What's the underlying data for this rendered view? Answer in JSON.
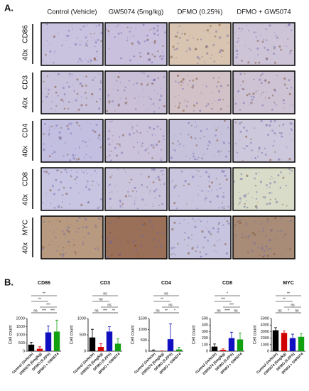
{
  "panel_a": {
    "label": "A.",
    "columns": [
      "Control (Vehicle)",
      "GW5074 (5mg/kg)",
      "DFMO (0.25%)",
      "DFMO + GW5074"
    ],
    "rows": [
      {
        "marker": "CD86",
        "magnification": "40x"
      },
      {
        "marker": "CD3",
        "magnification": "40x"
      },
      {
        "marker": "CD4",
        "magnification": "40x"
      },
      {
        "marker": "CD8",
        "magnification": "40x"
      },
      {
        "marker": "MYC",
        "magnification": "40x"
      }
    ]
  },
  "panel_b": {
    "label": "B."
  },
  "chart_data": [
    {
      "type": "bar",
      "title": "CD86",
      "ylabel": "Cell count",
      "categories": [
        "Control (Vehicle)",
        "GW5074 (5mg/kg)",
        "DFMO (0.25%)",
        "DFMO + GW5074"
      ],
      "values": [
        400,
        150,
        1150,
        1200
      ],
      "errors": [
        150,
        120,
        400,
        700
      ],
      "colors": [
        "#000000",
        "#d00000",
        "#1010c0",
        "#10a010"
      ],
      "ylim": [
        0,
        2000
      ],
      "yticks": [
        0,
        500,
        1000,
        1500,
        2000
      ],
      "annotations": [
        "ns",
        "***",
        "***",
        "***",
        "**",
        "**"
      ]
    },
    {
      "type": "bar",
      "title": "CD3",
      "ylabel": "Cell count",
      "categories": [
        "Control (Vehicle)",
        "GW5074 (5mg/kg)",
        "DFMO (0.25%)",
        "DFMO + GW5074"
      ],
      "values": [
        420,
        130,
        600,
        230
      ],
      "errors": [
        250,
        100,
        150,
        150
      ],
      "colors": [
        "#000000",
        "#d00000",
        "#1010c0",
        "#10a010"
      ],
      "ylim": [
        0,
        1000
      ],
      "yticks": [
        0,
        500,
        1000
      ],
      "annotations": [
        "ns",
        "***",
        "**",
        "ns",
        "ns",
        "ns"
      ]
    },
    {
      "type": "bar",
      "title": "CD4",
      "ylabel": "Cell count",
      "categories": [
        "Control (Vehicle)",
        "GW5074 (5mg/kg)",
        "DFMO (0.25%)",
        "DFMO + GW5074"
      ],
      "values": [
        20,
        5,
        550,
        80
      ],
      "errors": [
        40,
        10,
        700,
        100
      ],
      "colors": [
        "#000000",
        "#d00000",
        "#1010c0",
        "#10a010"
      ],
      "ylim": [
        0,
        1500
      ],
      "yticks": [
        0,
        500,
        1000,
        1500
      ],
      "annotations": [
        "ns",
        "**",
        "*",
        "ns",
        "**",
        "ns"
      ]
    },
    {
      "type": "bar",
      "title": "CD8",
      "ylabel": "Cell count",
      "categories": [
        "Control (Vehicle)",
        "GW5074 (5mg/kg)",
        "DFMO (0.25%)",
        "DFMO + GW5074"
      ],
      "values": [
        70,
        20,
        200,
        180
      ],
      "errors": [
        40,
        15,
        90,
        100
      ],
      "colors": [
        "#000000",
        "#d00000",
        "#1010c0",
        "#10a010"
      ],
      "ylim": [
        0,
        500
      ],
      "yticks": [
        0,
        100,
        200,
        300,
        400,
        500
      ],
      "annotations": [
        "ns",
        "****",
        "ns",
        "***",
        "***",
        "*"
      ]
    },
    {
      "type": "bar",
      "title": "MYC",
      "ylabel": "Cell count",
      "categories": [
        "Control (Vehicle)",
        "GW5074 (5mg/kg)",
        "DFMO (0.25%)",
        "DFMO + GW5074"
      ],
      "values": [
        3200,
        2800,
        2000,
        2200
      ],
      "errors": [
        400,
        300,
        600,
        500
      ],
      "colors": [
        "#000000",
        "#d00000",
        "#1010c0",
        "#10a010"
      ],
      "ylim": [
        0,
        5000
      ],
      "yticks": [
        0,
        1000,
        2000,
        3000,
        4000,
        5000
      ],
      "annotations": [
        "ns",
        "*",
        "ns",
        "ns",
        "**",
        "**"
      ]
    }
  ]
}
